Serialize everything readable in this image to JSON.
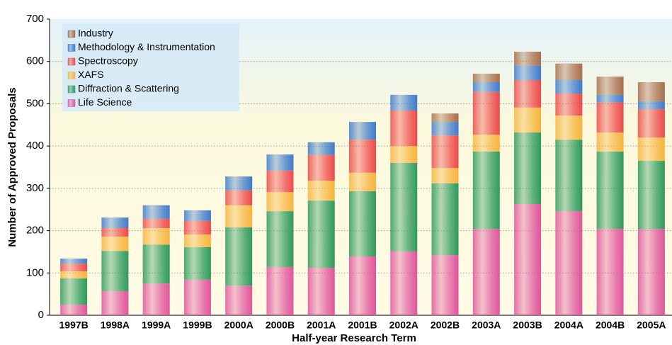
{
  "chart_data": {
    "type": "bar",
    "stacked": true,
    "x_label": "Half-year Research Term",
    "y_label": "Number of Approved Proposals",
    "categories": [
      "1997B",
      "1998A",
      "1999A",
      "1999B",
      "2000A",
      "2000B",
      "2001A",
      "2001B",
      "2002A",
      "2002B",
      "2003A",
      "2003B",
      "2004A",
      "2004B",
      "2005A"
    ],
    "series": [
      {
        "name": "Life Science",
        "color": "#e0559c",
        "values": [
          25,
          57,
          75,
          84,
          70,
          114,
          112,
          139,
          151,
          142,
          204,
          263,
          246,
          204,
          204
        ]
      },
      {
        "name": "Diffraction & Scattering",
        "color": "#2f9a5c",
        "values": [
          62,
          95,
          92,
          77,
          138,
          132,
          159,
          154,
          209,
          170,
          183,
          169,
          169,
          183,
          161
        ]
      },
      {
        "name": "XAFS",
        "color": "#f7b43c",
        "values": [
          17,
          34,
          39,
          30,
          52,
          45,
          47,
          44,
          40,
          36,
          40,
          59,
          57,
          45,
          55
        ]
      },
      {
        "name": "Spectroscopy",
        "color": "#ee4a4a",
        "values": [
          18,
          20,
          22,
          32,
          35,
          51,
          61,
          78,
          84,
          77,
          101,
          65,
          52,
          71,
          67
        ]
      },
      {
        "name": "Methodology & Instrumentation",
        "color": "#3f7bcc",
        "values": [
          12,
          25,
          32,
          25,
          33,
          38,
          30,
          42,
          37,
          32,
          23,
          34,
          32,
          18,
          19
        ]
      },
      {
        "name": "Industry",
        "color": "#a86f4e",
        "values": [
          0,
          0,
          0,
          0,
          0,
          0,
          0,
          0,
          0,
          20,
          20,
          33,
          39,
          43,
          45
        ]
      }
    ],
    "ylim": [
      0,
      700
    ],
    "yticks": [
      0,
      100,
      200,
      300,
      400,
      500,
      600,
      700
    ],
    "grid": true,
    "legend": "top-left"
  }
}
